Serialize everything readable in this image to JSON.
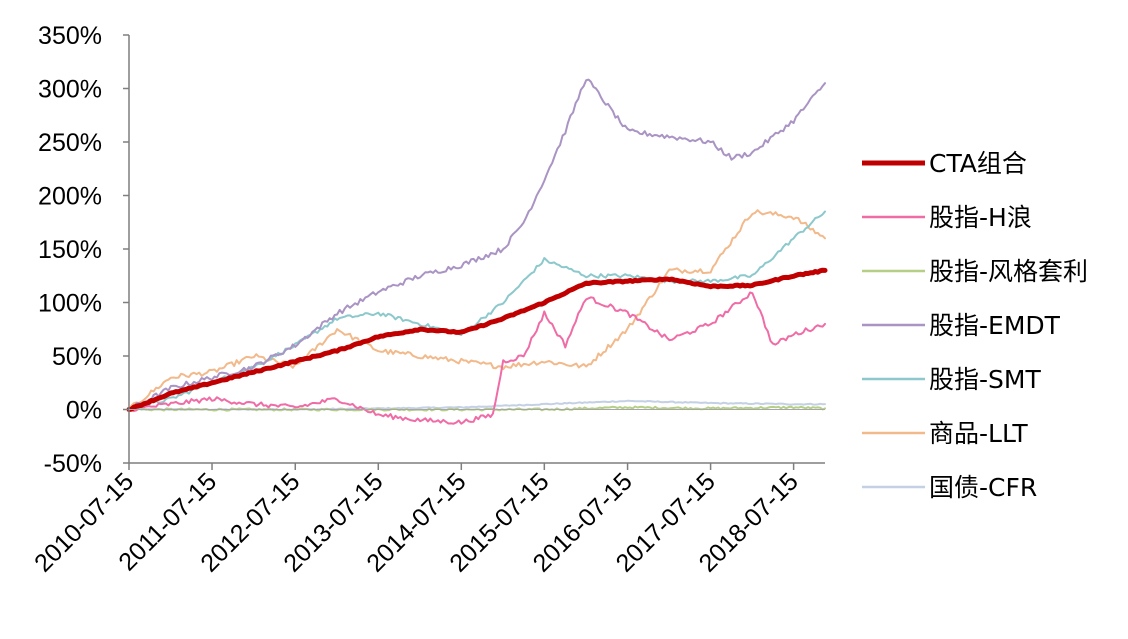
{
  "chart_data": {
    "type": "line",
    "title": "",
    "xlabel": "",
    "ylabel": "",
    "y_tick_labels": [
      "350%",
      "300%",
      "250%",
      "200%",
      "150%",
      "100%",
      "50%",
      "0%",
      "-50%"
    ],
    "x_tick_labels": [
      "2010-07-15",
      "2011-07-15",
      "2012-07-15",
      "2013-07-15",
      "2014-07-15",
      "2015-07-15",
      "2016-07-15",
      "2017-07-15",
      "2018-07-15"
    ],
    "ylim": [
      -50,
      350
    ],
    "xlim": [
      "2010-07-15",
      "2018-11-30"
    ],
    "grid": false,
    "legend_position": "right",
    "series": [
      {
        "name": "CTA组合",
        "color": "#C00000",
        "x": [
          "2010-07-15",
          "2011-01-15",
          "2011-07-15",
          "2012-01-15",
          "2012-07-15",
          "2013-01-15",
          "2013-07-15",
          "2014-01-15",
          "2014-07-15",
          "2015-01-15",
          "2015-07-15",
          "2016-01-15",
          "2016-07-15",
          "2017-01-15",
          "2017-07-15",
          "2018-01-15",
          "2018-07-15",
          "2018-11-30"
        ],
        "values": [
          0,
          15,
          25,
          35,
          45,
          55,
          68,
          75,
          72,
          85,
          100,
          118,
          120,
          122,
          115,
          116,
          125,
          130
        ]
      },
      {
        "name": "股指-H浪",
        "color": "#F06CA6",
        "x": [
          "2010-07-15",
          "2011-01-15",
          "2011-07-15",
          "2012-01-15",
          "2012-07-15",
          "2013-01-15",
          "2013-07-15",
          "2014-01-15",
          "2014-07-15",
          "2014-12-01",
          "2015-01-15",
          "2015-04-15",
          "2015-07-15",
          "2015-10-15",
          "2016-01-15",
          "2016-07-15",
          "2017-01-15",
          "2017-07-15",
          "2018-01-15",
          "2018-04-15",
          "2018-07-15",
          "2018-11-30"
        ],
        "values": [
          0,
          5,
          10,
          5,
          2,
          10,
          -5,
          -10,
          -12,
          -5,
          45,
          50,
          90,
          60,
          105,
          90,
          65,
          80,
          110,
          60,
          70,
          80
        ]
      },
      {
        "name": "股指-风格套利",
        "color": "#B5CF87",
        "x": [
          "2010-07-15",
          "2015-07-15",
          "2016-07-15",
          "2017-07-15",
          "2018-07-15",
          "2018-11-30"
        ],
        "values": [
          0,
          0,
          2,
          1,
          2,
          1
        ]
      },
      {
        "name": "股指-EMDT",
        "color": "#A994C4",
        "x": [
          "2010-07-15",
          "2011-01-15",
          "2011-07-15",
          "2012-01-15",
          "2012-07-15",
          "2013-01-15",
          "2013-07-15",
          "2014-01-15",
          "2014-07-15",
          "2015-01-15",
          "2015-04-15",
          "2015-07-15",
          "2015-10-15",
          "2016-01-15",
          "2016-07-15",
          "2017-01-15",
          "2017-07-15",
          "2017-10-15",
          "2018-01-15",
          "2018-07-15",
          "2018-11-30"
        ],
        "values": [
          0,
          20,
          30,
          40,
          60,
          90,
          110,
          125,
          135,
          150,
          175,
          215,
          260,
          310,
          260,
          255,
          250,
          235,
          240,
          270,
          305
        ]
      },
      {
        "name": "股指-SMT",
        "color": "#8CC8CC",
        "x": [
          "2010-07-15",
          "2011-01-15",
          "2011-07-15",
          "2012-01-15",
          "2012-07-15",
          "2013-01-15",
          "2013-07-15",
          "2014-01-15",
          "2014-07-15",
          "2015-01-15",
          "2015-07-15",
          "2016-01-15",
          "2016-07-15",
          "2017-01-15",
          "2017-07-15",
          "2018-01-15",
          "2018-07-15",
          "2018-11-30"
        ],
        "values": [
          0,
          10,
          25,
          40,
          60,
          85,
          90,
          80,
          70,
          100,
          140,
          125,
          125,
          120,
          120,
          125,
          160,
          185
        ]
      },
      {
        "name": "商品-LLT",
        "color": "#F2B98B",
        "x": [
          "2010-07-15",
          "2011-01-15",
          "2011-07-15",
          "2012-01-15",
          "2012-07-15",
          "2013-01-15",
          "2013-07-15",
          "2014-01-15",
          "2014-07-15",
          "2015-01-15",
          "2015-07-15",
          "2016-01-15",
          "2016-07-15",
          "2017-01-15",
          "2017-07-15",
          "2018-01-15",
          "2018-07-15",
          "2018-11-30"
        ],
        "values": [
          0,
          30,
          35,
          50,
          40,
          75,
          55,
          50,
          45,
          40,
          45,
          40,
          75,
          130,
          130,
          185,
          180,
          160
        ]
      },
      {
        "name": "国债-CFR",
        "color": "#C4D0E4",
        "x": [
          "2010-07-15",
          "2012-07-15",
          "2014-07-15",
          "2015-07-15",
          "2016-07-15",
          "2017-07-15",
          "2018-07-15",
          "2018-11-30"
        ],
        "values": [
          0,
          0,
          2,
          5,
          8,
          6,
          5,
          5
        ]
      }
    ]
  }
}
